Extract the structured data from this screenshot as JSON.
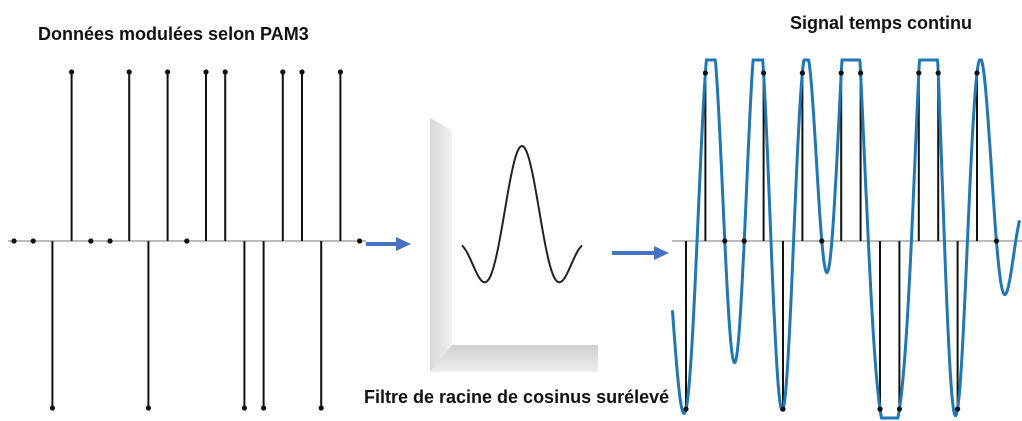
{
  "left": {
    "title": "Données modulées selon PAM3"
  },
  "filter": {
    "label": "Filtre de racine de cosinus surélevé"
  },
  "right": {
    "title": "Signal temps continu"
  }
}
